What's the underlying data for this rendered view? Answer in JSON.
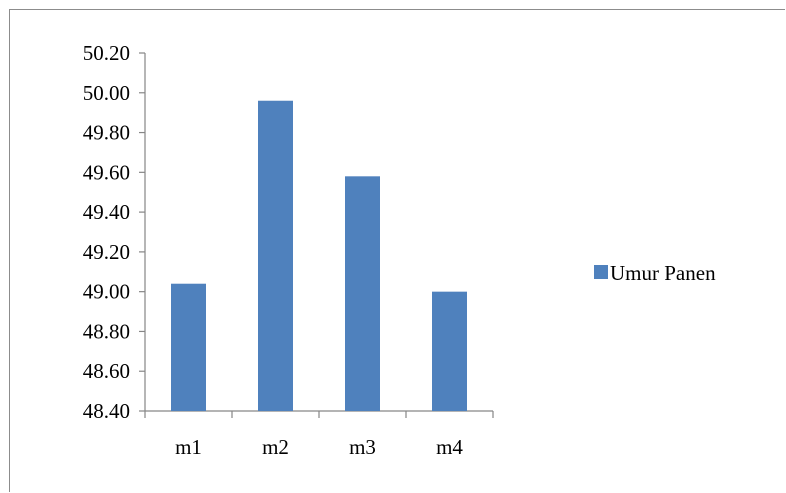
{
  "chart_data": {
    "type": "bar",
    "categories": [
      "m1",
      "m2",
      "m3",
      "m4"
    ],
    "series": [
      {
        "name": "Umur Panen",
        "values": [
          49.04,
          49.96,
          49.58,
          49.0
        ],
        "color": "#4f81bd"
      }
    ],
    "title": "",
    "xlabel": "",
    "ylabel": "",
    "ylim": [
      48.4,
      50.2
    ],
    "yticks": [
      "48.40",
      "48.60",
      "48.80",
      "49.00",
      "49.20",
      "49.40",
      "49.60",
      "49.80",
      "50.00",
      "50.20"
    ],
    "grid": false,
    "legend": "right"
  }
}
